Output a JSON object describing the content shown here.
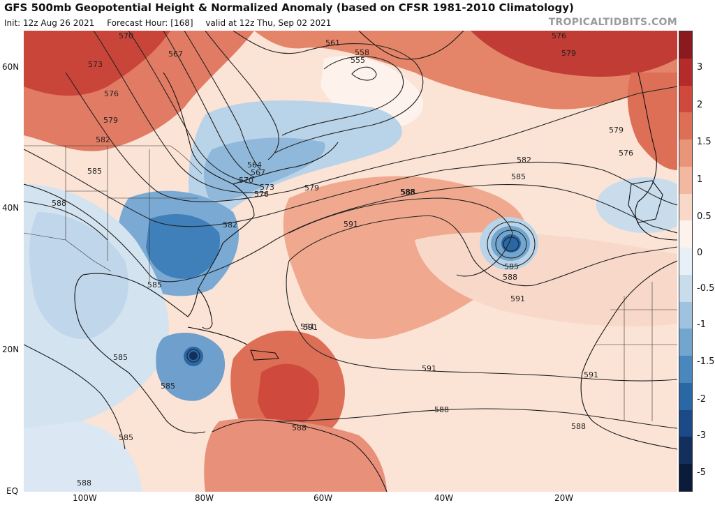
{
  "header": {
    "title": "GFS 500mb Geopotential Height & Normalized Anomaly (based on CFSR 1981-2010 Climatology)",
    "init": "Init: 12z Aug 26 2021",
    "forecast_hour": "Forecast Hour: [168]",
    "valid": "valid at 12z Thu, Sep 02 2021",
    "credit": "TROPICALTIDBITS.COM"
  },
  "axes": {
    "lat_labels": [
      "60N",
      "40N",
      "20N",
      "EQ"
    ],
    "lon_labels": [
      "100W",
      "80W",
      "60W",
      "40W",
      "20W"
    ]
  },
  "colorbar": {
    "labels": [
      "3",
      "2",
      "1.5",
      "1",
      "0.5",
      "0",
      "-0.5",
      "-1",
      "-1.5",
      "-2",
      "-3",
      "-5"
    ],
    "colors": [
      "#8b1a1f",
      "#b52a2a",
      "#cf4a3c",
      "#de6f57",
      "#ea9479",
      "#f3b9a0",
      "#f8d9c9",
      "#fdf2ec",
      "#e8f0f7",
      "#c8dcec",
      "#9fc3de",
      "#73a6cf",
      "#4a87bd",
      "#2a67a5",
      "#1b4a86",
      "#13305d",
      "#0b1b3a"
    ],
    "colors_meaning": "anomaly shading from +3 (dark red) to -5 (dark navy)"
  },
  "contour_labels": [
    "570",
    "567",
    "573",
    "576",
    "579",
    "582",
    "585",
    "588",
    "561",
    "558",
    "555",
    "564",
    "567",
    "570",
    "573",
    "576",
    "579",
    "582",
    "585",
    "588",
    "591",
    "576",
    "579",
    "579",
    "582",
    "576",
    "585",
    "588",
    "585",
    "588",
    "591",
    "591",
    "585",
    "585",
    "585",
    "585",
    "591",
    "588",
    "591",
    "588",
    "588",
    "591",
    "588"
  ]
}
